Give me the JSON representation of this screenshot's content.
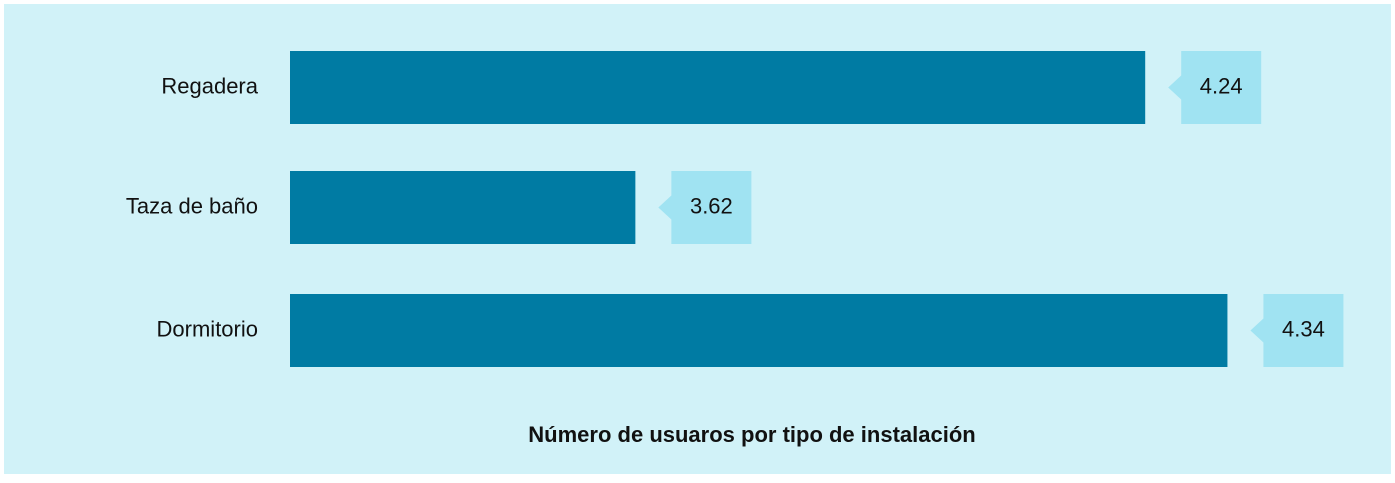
{
  "chart_data": {
    "type": "bar",
    "orientation": "horizontal",
    "title": "Número de usuaros por tipo de instalación",
    "categories": [
      "Regadera",
      "Taza de baño",
      "Dormitorio"
    ],
    "values": [
      4.24,
      3.62,
      4.34
    ],
    "color": "#007ba3",
    "label_color": "#a0e3f2",
    "xlim": [
      3.2,
      4.5
    ]
  }
}
